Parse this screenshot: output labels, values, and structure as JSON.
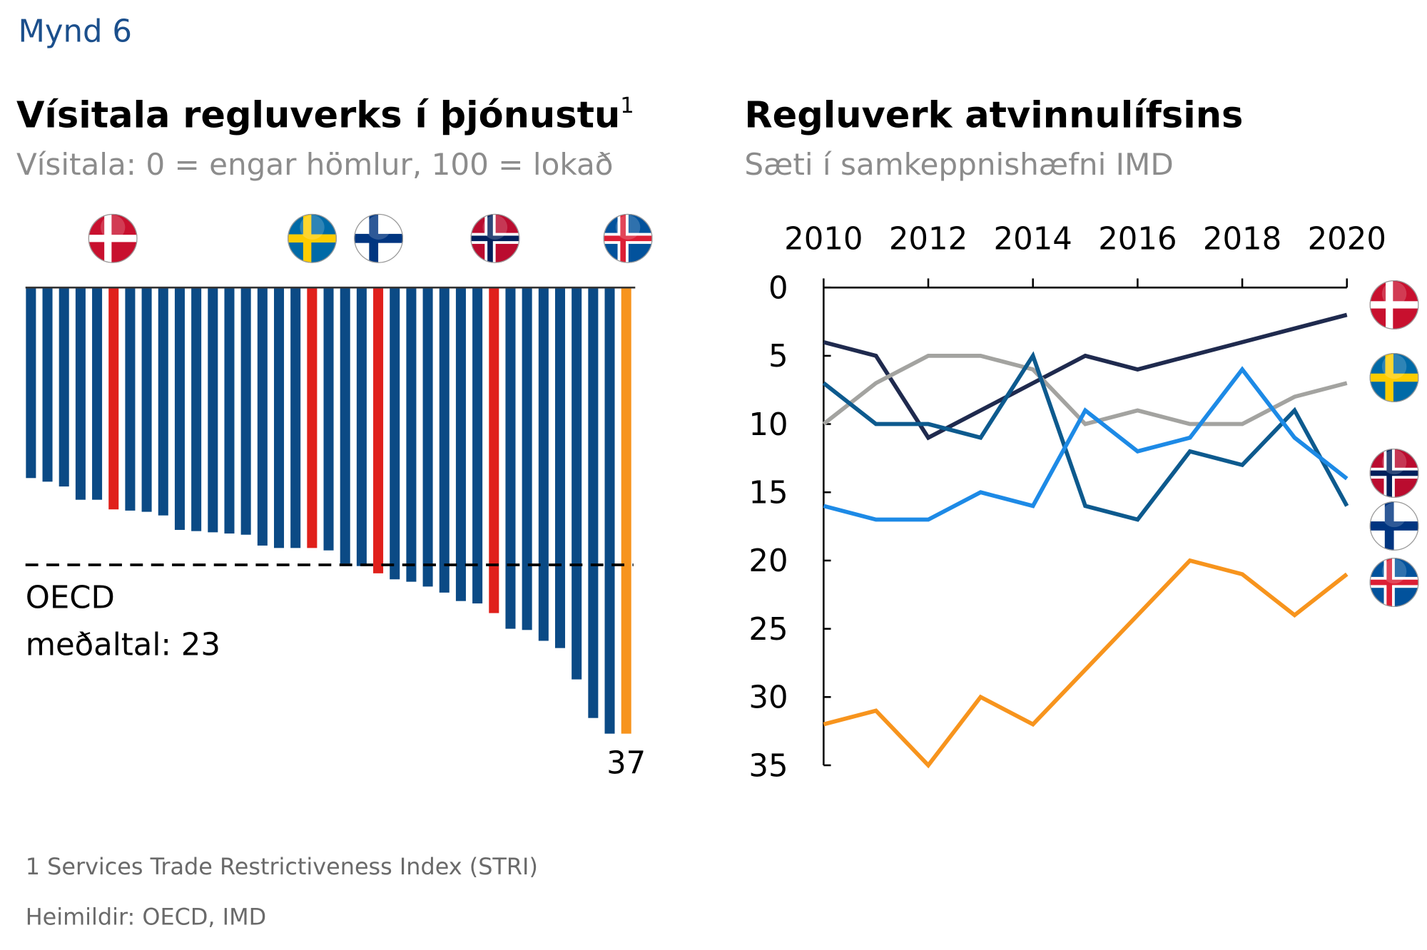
{
  "figure_label": "Mynd 6",
  "chart_data": [
    {
      "type": "bar",
      "orientation": "down",
      "title": "Vísitala regluverks í þjónustu",
      "title_note": "1",
      "subtitle": "Vísitala: 0 = engar hömlur, 100 = lokað",
      "values": [
        15.8,
        16.1,
        16.5,
        17.6,
        17.6,
        18.4,
        18.5,
        18.6,
        18.9,
        20.1,
        20.2,
        20.3,
        20.4,
        20.5,
        21.4,
        21.6,
        21.6,
        21.6,
        21.8,
        22.9,
        23.1,
        23.7,
        24.2,
        24.4,
        24.8,
        25.3,
        26.0,
        26.2,
        27.0,
        28.3,
        28.4,
        29.3,
        29.9,
        32.5,
        35.7,
        37.0,
        37
      ],
      "colors": [
        "#0b4a85",
        "#0b4a85",
        "#0b4a85",
        "#0b4a85",
        "#0b4a85",
        "#e0201b",
        "#0b4a85",
        "#0b4a85",
        "#0b4a85",
        "#0b4a85",
        "#0b4a85",
        "#0b4a85",
        "#0b4a85",
        "#0b4a85",
        "#0b4a85",
        "#0b4a85",
        "#0b4a85",
        "#e0201b",
        "#0b4a85",
        "#0b4a85",
        "#0b4a85",
        "#e0201b",
        "#0b4a85",
        "#0b4a85",
        "#0b4a85",
        "#0b4a85",
        "#0b4a85",
        "#0b4a85",
        "#e0201b",
        "#0b4a85",
        "#0b4a85",
        "#0b4a85",
        "#0b4a85",
        "#0b4a85",
        "#0b4a85",
        "#0b4a85",
        "#f7941d"
      ],
      "reference_line": {
        "value": 23,
        "label_lines": [
          "OECD",
          "meðaltal: 23"
        ]
      }
    },
    {
      "type": "line",
      "title": "Regluverk atvinnulífsins",
      "subtitle": "Sæti í samkeppnishæfni IMD",
      "x": [
        2010,
        2011,
        2012,
        2013,
        2014,
        2015,
        2016,
        2017,
        2018,
        2019,
        2020
      ],
      "xlim": [
        2010,
        2020
      ],
      "xticks": [
        2010,
        2012,
        2014,
        2016,
        2018,
        2020
      ],
      "x_axis_position": "top",
      "ylim": [
        0,
        35
      ],
      "yticks": [
        0,
        5,
        10,
        15,
        20,
        25,
        30,
        35
      ],
      "y_inverted": true,
      "series": [
        {
          "color": "#1f2a4e",
          "values": [
            4,
            5,
            11,
            9,
            7,
            5,
            6,
            5,
            4,
            3,
            2
          ]
        },
        {
          "color": "#a3a3a0",
          "values": [
            10,
            7,
            5,
            5,
            6,
            10,
            9,
            10,
            10,
            8,
            7
          ]
        },
        {
          "color": "#0d5a8e",
          "values": [
            7,
            10,
            10,
            11,
            5,
            16,
            17,
            12,
            13,
            9,
            16
          ]
        },
        {
          "color": "#1d8ae6",
          "values": [
            16,
            17,
            17,
            15,
            16,
            9,
            12,
            11,
            6,
            11,
            14
          ]
        },
        {
          "color": "#f7941d",
          "values": [
            32,
            31,
            35,
            30,
            32,
            28,
            24,
            20,
            21,
            24,
            21
          ]
        }
      ]
    }
  ],
  "footnote": "1 Services Trade Restrictiveness Index (STRI)",
  "sources": "Heimildir: OECD, IMD"
}
